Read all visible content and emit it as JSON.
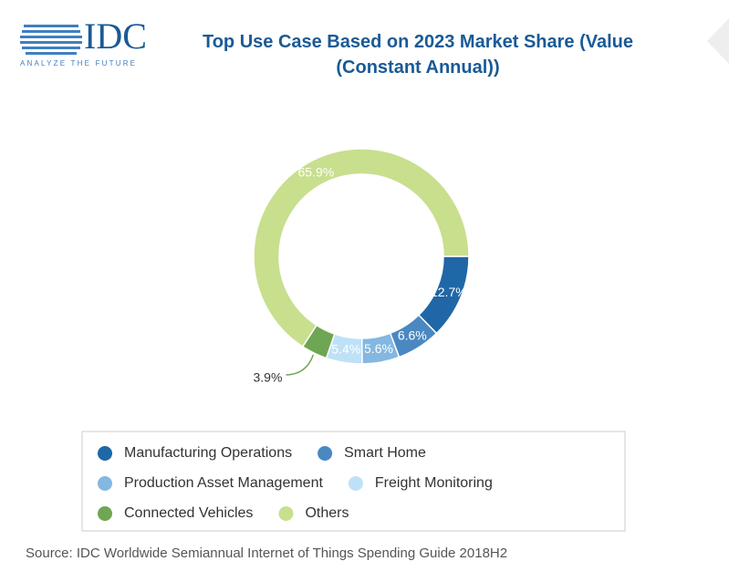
{
  "header": {
    "logo": "IDC",
    "tagline": "ANALYZE THE FUTURE"
  },
  "chart_data": {
    "type": "donut",
    "title": "Top Use Case Based on 2023 Market Share (Value (Constant Annual))",
    "categories": [
      "Manufacturing Operations",
      "Smart Home",
      "Production Asset Management",
      "Freight Monitoring",
      "Connected Vehicles",
      "Others"
    ],
    "values": [
      12.7,
      6.6,
      5.6,
      5.4,
      3.9,
      65.9
    ],
    "value_labels": [
      "12.7%",
      "6.6%",
      "5.6%",
      "5.4%",
      "3.9%",
      "65.9%"
    ],
    "colors": [
      "#1f67a6",
      "#4a88c2",
      "#84b7e1",
      "#bfe1f8",
      "#6ea653",
      "#c8df8e"
    ],
    "legend": "bottom",
    "source": "Source: IDC Worldwide Semiannual Internet of Things Spending Guide 2018H2"
  }
}
